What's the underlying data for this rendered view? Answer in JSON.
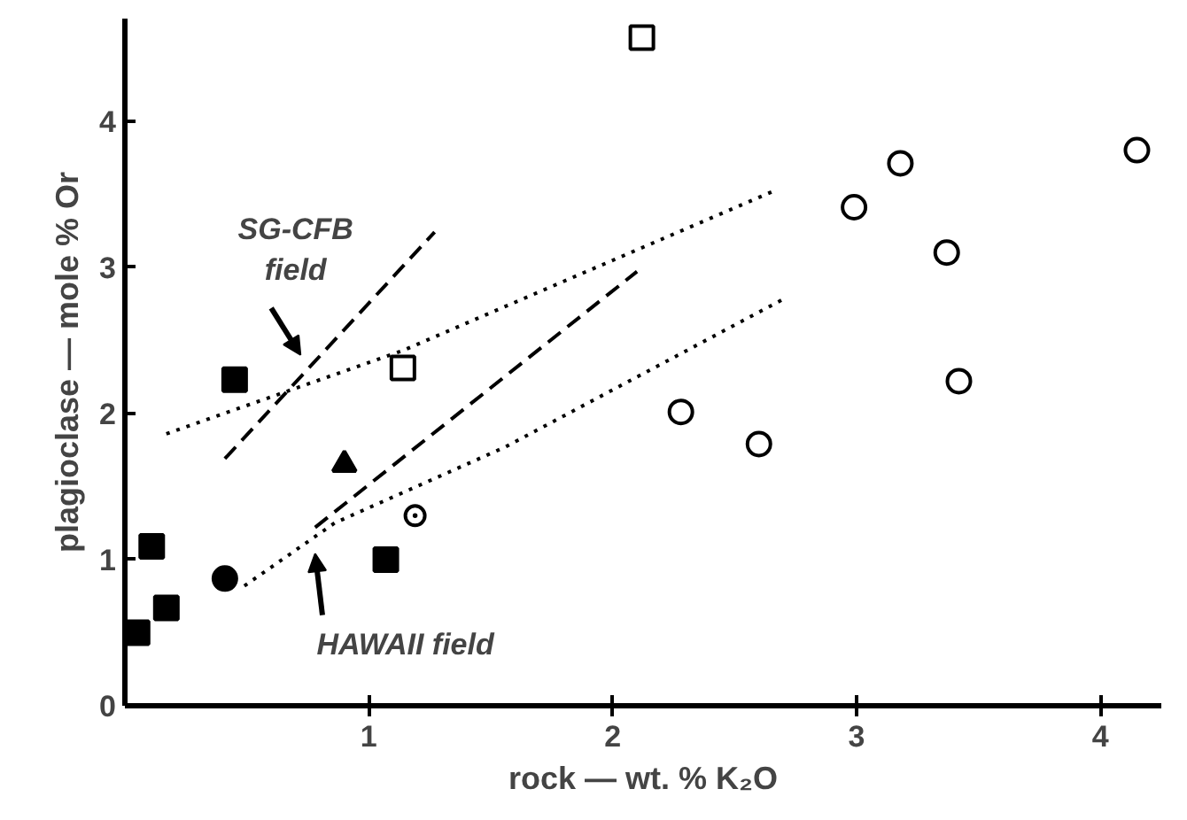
{
  "chart_data": {
    "type": "scatter",
    "xlabel": "rock — wt. % K₂O",
    "ylabel": "plagioclase — mole % Or",
    "xlim": [
      0,
      4.25
    ],
    "ylim": [
      0,
      4.7
    ],
    "xticks": [
      1,
      2,
      3,
      4
    ],
    "yticks": [
      0,
      1,
      2,
      3,
      4
    ],
    "grid": false,
    "series": [
      {
        "marker": "square",
        "color": "#000000",
        "x": [
          0.05,
          0.11,
          0.17,
          0.45,
          1.07
        ],
        "values": [
          0.5,
          1.09,
          0.67,
          2.23,
          1.0
        ]
      },
      {
        "marker": "square_open",
        "color": "#000000",
        "x": [
          1.14,
          2.12
        ],
        "values": [
          2.31,
          4.57
        ]
      },
      {
        "marker": "triangle",
        "color": "#000000",
        "x": [
          0.9
        ],
        "values": [
          1.65
        ]
      },
      {
        "marker": "circle",
        "color": "#000000",
        "x": [
          0.41
        ],
        "values": [
          0.87
        ]
      },
      {
        "marker": "circle_dot",
        "color": "#000000",
        "x": [
          1.19
        ],
        "values": [
          1.3
        ]
      },
      {
        "marker": "circle_open",
        "color": "#000000",
        "x": [
          2.28,
          2.6,
          2.99,
          3.18,
          3.37,
          3.42,
          4.15
        ],
        "values": [
          2.01,
          1.79,
          3.41,
          3.71,
          3.1,
          2.22,
          3.8
        ]
      },
      {
        "type": "line",
        "line_style": "dotted",
        "marker": "none",
        "color": "#000000",
        "x": [
          0.17,
          1.14,
          2.66
        ],
        "values": [
          1.86,
          2.43,
          3.52
        ]
      },
      {
        "type": "line",
        "line_style": "dotted",
        "marker": "none",
        "color": "#000000",
        "x": [
          0.49,
          0.86,
          1.56,
          2.71
        ],
        "values": [
          0.82,
          1.25,
          1.77,
          2.79
        ]
      },
      {
        "type": "line",
        "line_style": "dashed",
        "marker": "none",
        "color": "#000000",
        "x": [
          0.41,
          1.27
        ],
        "values": [
          1.69,
          3.24
        ]
      },
      {
        "type": "line",
        "line_style": "dashed",
        "marker": "none",
        "color": "#000000",
        "x": [
          0.78,
          2.1
        ],
        "values": [
          1.22,
          2.97
        ]
      }
    ],
    "annotations": [
      "SG-CFB\nfield",
      "HAWAII field"
    ]
  }
}
